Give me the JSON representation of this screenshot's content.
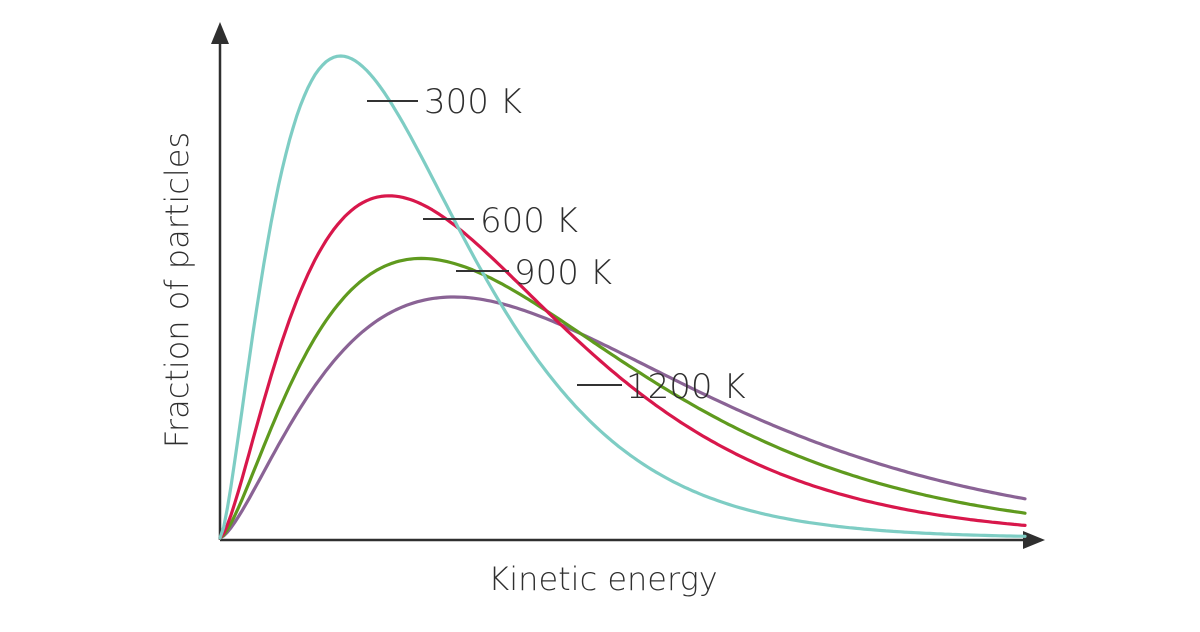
{
  "chart_data": {
    "type": "line",
    "title": "",
    "xlabel": "Kinetic energy",
    "ylabel": "Fraction of particles",
    "grid": false,
    "legend": "inline labels",
    "series": [
      {
        "name": "300 K",
        "color": "#7ecdc4",
        "x_peak": 0.15,
        "y_peak": 1.0
      },
      {
        "name": "600 K",
        "color": "#d8174b",
        "x_peak": 0.21,
        "y_peak": 0.71
      },
      {
        "name": "900 K",
        "color": "#5f9a1e",
        "x_peak": 0.25,
        "y_peak": 0.58
      },
      {
        "name": "1200 K",
        "color": "#8a6395",
        "x_peak": 0.29,
        "y_peak": 0.5
      }
    ]
  }
}
